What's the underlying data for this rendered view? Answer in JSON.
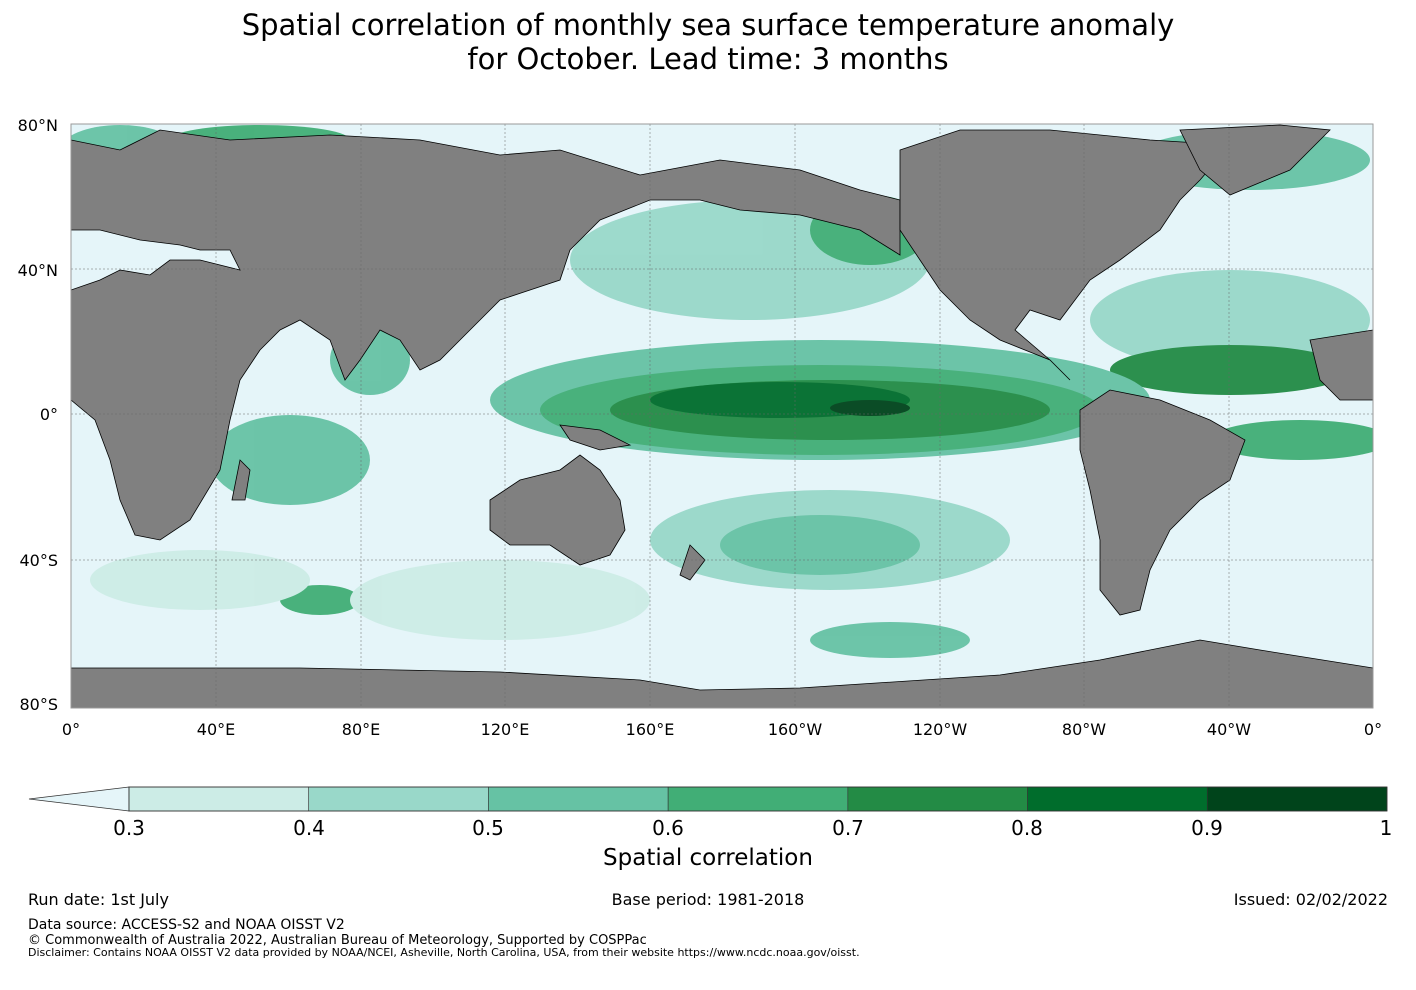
{
  "title": {
    "line1": "Spatial correlation of monthly sea surface temperature anomaly",
    "line2": "for October. Lead time: 3 months"
  },
  "map": {
    "lat_labels": [
      "80°N",
      "40°N",
      "0°",
      "40°S",
      "80°S"
    ],
    "lon_labels": [
      "0°",
      "40°E",
      "80°E",
      "120°E",
      "160°E",
      "160°W",
      "120°W",
      "80°W",
      "40°W",
      "0°"
    ],
    "colors": {
      "land": "#808080",
      "ocean_low": "#e5f5f9",
      "coast": "#000000"
    }
  },
  "colorbar": {
    "label": "Spatial correlation",
    "ticks": [
      "0.3",
      "0.4",
      "0.5",
      "0.6",
      "0.7",
      "0.8",
      "0.9",
      "1"
    ],
    "colors": [
      "#ccece6",
      "#99d8c9",
      "#66c2a4",
      "#41ae76",
      "#238b45",
      "#006d2c",
      "#00441b"
    ],
    "extend_color": "#e5f5f9"
  },
  "footer": {
    "run_date": "Run date: 1st July",
    "base_period": "Base period: 1981-2018",
    "issued": "Issued: 02/02/2022",
    "data_source": "Data source: ACCESS-S2 and NOAA OISST V2",
    "copyright": "© Commonwealth of Australia 2022, Australian Bureau of Meteorology, Supported by COSPPac",
    "disclaimer": "Disclaimer: Contains NOAA OISST V2 data provided by NOAA/NCEI, Asheville, North Carolina, USA, from their website https://www.ncdc.noaa.gov/oisst."
  }
}
